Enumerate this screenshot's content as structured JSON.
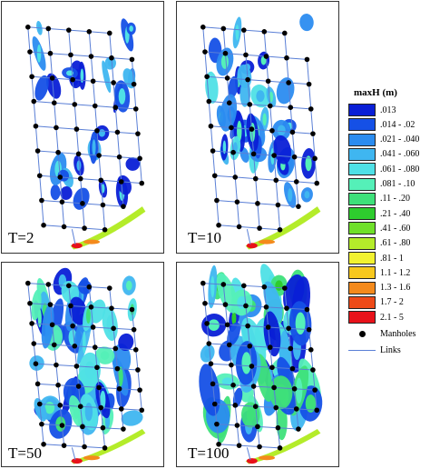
{
  "panels": [
    {
      "label": "T=2",
      "level": 0
    },
    {
      "label": "T=10",
      "level": 1
    },
    {
      "label": "T=50",
      "level": 2
    },
    {
      "label": "T=100",
      "level": 3
    }
  ],
  "legend": {
    "title": "maxH (m)",
    "classes": [
      {
        "label": ".013",
        "color": "#0a1fd6"
      },
      {
        "label": ".014 - .02",
        "color": "#1550e6"
      },
      {
        "label": ".021 - .040",
        "color": "#2b8cf0"
      },
      {
        "label": ".041 - .060",
        "color": "#3fb6f0"
      },
      {
        "label": ".061 - .080",
        "color": "#4fe0e6"
      },
      {
        "label": ".081 - .10",
        "color": "#55f0b8"
      },
      {
        "label": ".11 - .20",
        "color": "#3ee07a"
      },
      {
        "label": ".21 - .40",
        "color": "#2ecc2e"
      },
      {
        "label": ".41 - .60",
        "color": "#6fe02a"
      },
      {
        "label": ".61 - .80",
        "color": "#b4ec2a"
      },
      {
        "label": ".81 - 1",
        "color": "#f2f230"
      },
      {
        "label": "1.1 - 1.2",
        "color": "#f7c81e"
      },
      {
        "label": "1.3 - 1.6",
        "color": "#f48a1c"
      },
      {
        "label": "1.7 - 2",
        "color": "#ee4a18"
      },
      {
        "label": "2.1 - 5",
        "color": "#e8121a"
      }
    ],
    "manholes_label": "Manholes",
    "links_label": "Links"
  },
  "colors": {
    "link": "#5a7fd6",
    "manhole": "#000000"
  }
}
